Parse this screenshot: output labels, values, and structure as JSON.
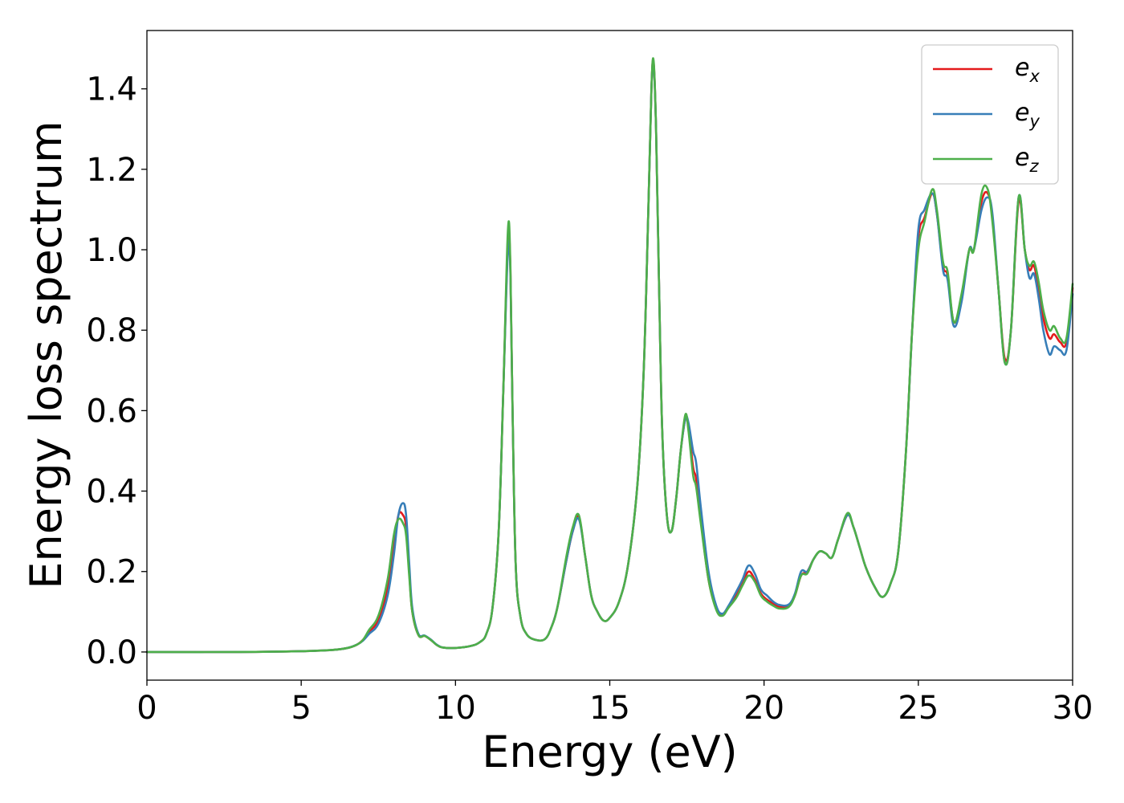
{
  "chart_data": {
    "type": "line",
    "xlabel": "Energy (eV)",
    "ylabel": "Energy loss spectrum",
    "xlim": [
      0,
      30
    ],
    "ylim": [
      -0.07,
      1.545
    ],
    "xticks": [
      0,
      5,
      10,
      15,
      20,
      25,
      30
    ],
    "yticks": [
      0.0,
      0.2,
      0.4,
      0.6,
      0.8,
      1.0,
      1.2,
      1.4
    ],
    "grid": false,
    "legend_position": "top-right",
    "series": [
      {
        "name": "e_x",
        "label_base": "e",
        "label_sub": "x",
        "color": "#e41a1c",
        "x": [
          0,
          3,
          5,
          6,
          6.5,
          6.8,
          7.0,
          7.2,
          7.5,
          7.8,
          8.0,
          8.15,
          8.3,
          8.4,
          8.5,
          8.6,
          8.8,
          9.0,
          9.2,
          9.4,
          9.6,
          10.0,
          10.5,
          10.8,
          11.0,
          11.2,
          11.4,
          11.55,
          11.7,
          11.78,
          11.85,
          11.95,
          12.1,
          12.3,
          12.6,
          12.9,
          13.1,
          13.3,
          13.6,
          13.8,
          14.0,
          14.2,
          14.4,
          14.6,
          14.8,
          15.0,
          15.3,
          15.6,
          15.9,
          16.1,
          16.25,
          16.35,
          16.42,
          16.5,
          16.6,
          16.7,
          16.85,
          17.0,
          17.15,
          17.3,
          17.45,
          17.55,
          17.7,
          17.8,
          17.95,
          18.2,
          18.45,
          18.65,
          18.85,
          19.1,
          19.3,
          19.5,
          19.7,
          19.9,
          20.1,
          20.3,
          20.5,
          20.8,
          21.0,
          21.2,
          21.4,
          21.6,
          21.8,
          22.0,
          22.2,
          22.4,
          22.7,
          22.9,
          23.1,
          23.3,
          23.6,
          23.85,
          24.1,
          24.35,
          24.6,
          24.8,
          25.0,
          25.2,
          25.45,
          25.6,
          25.8,
          25.95,
          26.15,
          26.4,
          26.65,
          26.8,
          27.05,
          27.25,
          27.4,
          27.6,
          27.8,
          28.0,
          28.25,
          28.45,
          28.6,
          28.75,
          28.9,
          29.05,
          29.25,
          29.4,
          29.6,
          29.8,
          30.0
        ],
        "y": [
          0,
          0,
          0.002,
          0.005,
          0.01,
          0.018,
          0.03,
          0.05,
          0.08,
          0.16,
          0.26,
          0.34,
          0.34,
          0.31,
          0.2,
          0.1,
          0.042,
          0.04,
          0.03,
          0.017,
          0.011,
          0.01,
          0.015,
          0.025,
          0.045,
          0.11,
          0.3,
          0.65,
          1.02,
          0.95,
          0.6,
          0.22,
          0.09,
          0.045,
          0.03,
          0.032,
          0.06,
          0.11,
          0.23,
          0.3,
          0.335,
          0.24,
          0.14,
          0.1,
          0.078,
          0.085,
          0.125,
          0.22,
          0.42,
          0.7,
          1.1,
          1.4,
          1.465,
          1.3,
          0.9,
          0.55,
          0.34,
          0.3,
          0.38,
          0.5,
          0.58,
          0.56,
          0.46,
          0.43,
          0.33,
          0.18,
          0.11,
          0.093,
          0.112,
          0.14,
          0.17,
          0.2,
          0.18,
          0.145,
          0.13,
          0.12,
          0.112,
          0.115,
          0.14,
          0.19,
          0.2,
          0.23,
          0.25,
          0.245,
          0.235,
          0.28,
          0.34,
          0.31,
          0.26,
          0.21,
          0.16,
          0.137,
          0.17,
          0.25,
          0.5,
          0.8,
          1.03,
          1.08,
          1.14,
          1.09,
          0.96,
          0.935,
          0.82,
          0.88,
          1.0,
          1.0,
          1.12,
          1.14,
          1.08,
          0.9,
          0.73,
          0.8,
          1.12,
          1.0,
          0.95,
          0.96,
          0.9,
          0.83,
          0.78,
          0.79,
          0.77,
          0.77,
          0.905
        ]
      },
      {
        "name": "e_y",
        "label_base": "e",
        "label_sub": "y",
        "color": "#377eb8",
        "x": [
          0,
          3,
          5,
          6,
          6.5,
          6.8,
          7.0,
          7.2,
          7.5,
          7.8,
          8.0,
          8.15,
          8.3,
          8.4,
          8.5,
          8.6,
          8.8,
          9.0,
          9.2,
          9.4,
          9.6,
          10.0,
          10.5,
          10.8,
          11.0,
          11.2,
          11.4,
          11.55,
          11.7,
          11.78,
          11.85,
          11.95,
          12.1,
          12.3,
          12.6,
          12.9,
          13.1,
          13.3,
          13.6,
          13.8,
          14.0,
          14.2,
          14.4,
          14.6,
          14.8,
          15.0,
          15.3,
          15.6,
          15.9,
          16.1,
          16.25,
          16.35,
          16.42,
          16.5,
          16.6,
          16.7,
          16.85,
          17.0,
          17.15,
          17.3,
          17.45,
          17.55,
          17.7,
          17.8,
          17.95,
          18.2,
          18.45,
          18.65,
          18.85,
          19.1,
          19.3,
          19.5,
          19.7,
          19.9,
          20.1,
          20.3,
          20.5,
          20.8,
          21.0,
          21.2,
          21.4,
          21.6,
          21.8,
          22.0,
          22.2,
          22.4,
          22.7,
          22.9,
          23.1,
          23.3,
          23.6,
          23.85,
          24.1,
          24.35,
          24.6,
          24.8,
          25.0,
          25.2,
          25.45,
          25.6,
          25.8,
          25.95,
          26.15,
          26.4,
          26.65,
          26.8,
          27.05,
          27.25,
          27.4,
          27.6,
          27.8,
          28.0,
          28.25,
          28.45,
          28.6,
          28.75,
          28.9,
          29.05,
          29.25,
          29.4,
          29.6,
          29.8,
          30.0
        ],
        "y": [
          0,
          0,
          0.002,
          0.005,
          0.01,
          0.018,
          0.028,
          0.045,
          0.07,
          0.14,
          0.24,
          0.34,
          0.37,
          0.34,
          0.22,
          0.11,
          0.045,
          0.041,
          0.031,
          0.018,
          0.011,
          0.01,
          0.015,
          0.025,
          0.045,
          0.11,
          0.3,
          0.65,
          1.0,
          0.94,
          0.6,
          0.22,
          0.09,
          0.045,
          0.03,
          0.032,
          0.06,
          0.11,
          0.23,
          0.3,
          0.33,
          0.24,
          0.14,
          0.1,
          0.078,
          0.085,
          0.125,
          0.22,
          0.42,
          0.7,
          1.1,
          1.4,
          1.46,
          1.3,
          0.9,
          0.55,
          0.34,
          0.3,
          0.38,
          0.5,
          0.58,
          0.57,
          0.5,
          0.47,
          0.36,
          0.2,
          0.115,
          0.095,
          0.115,
          0.15,
          0.18,
          0.215,
          0.195,
          0.155,
          0.14,
          0.125,
          0.117,
          0.118,
          0.145,
          0.2,
          0.2,
          0.23,
          0.25,
          0.245,
          0.235,
          0.28,
          0.34,
          0.31,
          0.26,
          0.21,
          0.16,
          0.137,
          0.17,
          0.25,
          0.5,
          0.8,
          1.05,
          1.1,
          1.14,
          1.09,
          0.95,
          0.925,
          0.81,
          0.87,
          1.0,
          1.0,
          1.1,
          1.13,
          1.09,
          0.9,
          0.72,
          0.8,
          1.13,
          1.0,
          0.93,
          0.94,
          0.88,
          0.8,
          0.74,
          0.76,
          0.75,
          0.75,
          0.89
        ]
      },
      {
        "name": "e_z",
        "label_base": "e",
        "label_sub": "z",
        "color": "#4daf4a",
        "x": [
          0,
          3,
          5,
          6,
          6.5,
          6.8,
          7.0,
          7.2,
          7.5,
          7.8,
          8.0,
          8.15,
          8.3,
          8.4,
          8.5,
          8.6,
          8.8,
          9.0,
          9.2,
          9.4,
          9.6,
          10.0,
          10.5,
          10.8,
          11.0,
          11.2,
          11.4,
          11.55,
          11.7,
          11.78,
          11.85,
          11.95,
          12.1,
          12.3,
          12.6,
          12.9,
          13.1,
          13.3,
          13.6,
          13.8,
          14.0,
          14.2,
          14.4,
          14.6,
          14.8,
          15.0,
          15.3,
          15.6,
          15.9,
          16.1,
          16.25,
          16.35,
          16.42,
          16.5,
          16.6,
          16.7,
          16.85,
          17.0,
          17.15,
          17.3,
          17.45,
          17.55,
          17.7,
          17.8,
          17.95,
          18.2,
          18.45,
          18.65,
          18.85,
          19.1,
          19.3,
          19.5,
          19.7,
          19.9,
          20.1,
          20.3,
          20.5,
          20.8,
          21.0,
          21.2,
          21.4,
          21.6,
          21.8,
          22.0,
          22.2,
          22.4,
          22.7,
          22.9,
          23.1,
          23.3,
          23.6,
          23.85,
          24.1,
          24.35,
          24.6,
          24.8,
          25.0,
          25.2,
          25.45,
          25.6,
          25.8,
          25.95,
          26.15,
          26.4,
          26.65,
          26.8,
          27.05,
          27.25,
          27.4,
          27.6,
          27.8,
          28.0,
          28.25,
          28.45,
          28.6,
          28.75,
          28.9,
          29.05,
          29.25,
          29.4,
          29.6,
          29.8,
          30.0
        ],
        "y": [
          0,
          0,
          0.002,
          0.005,
          0.01,
          0.018,
          0.03,
          0.055,
          0.09,
          0.18,
          0.29,
          0.33,
          0.32,
          0.29,
          0.19,
          0.1,
          0.042,
          0.04,
          0.03,
          0.017,
          0.011,
          0.01,
          0.015,
          0.025,
          0.045,
          0.11,
          0.3,
          0.65,
          1.05,
          0.96,
          0.6,
          0.22,
          0.09,
          0.045,
          0.03,
          0.032,
          0.06,
          0.11,
          0.24,
          0.31,
          0.34,
          0.24,
          0.14,
          0.1,
          0.078,
          0.085,
          0.125,
          0.22,
          0.42,
          0.7,
          1.1,
          1.4,
          1.47,
          1.3,
          0.9,
          0.55,
          0.34,
          0.3,
          0.38,
          0.5,
          0.59,
          0.55,
          0.44,
          0.41,
          0.32,
          0.18,
          0.105,
          0.09,
          0.11,
          0.135,
          0.165,
          0.19,
          0.175,
          0.14,
          0.125,
          0.115,
          0.108,
          0.112,
          0.14,
          0.19,
          0.195,
          0.23,
          0.25,
          0.245,
          0.235,
          0.28,
          0.345,
          0.31,
          0.26,
          0.21,
          0.16,
          0.137,
          0.17,
          0.25,
          0.5,
          0.8,
          1.0,
          1.07,
          1.15,
          1.1,
          0.97,
          0.945,
          0.82,
          0.89,
          1.0,
          1.0,
          1.14,
          1.15,
          1.07,
          0.9,
          0.72,
          0.8,
          1.13,
          1.0,
          0.96,
          0.97,
          0.92,
          0.85,
          0.8,
          0.81,
          0.78,
          0.78,
          0.915
        ]
      }
    ]
  }
}
